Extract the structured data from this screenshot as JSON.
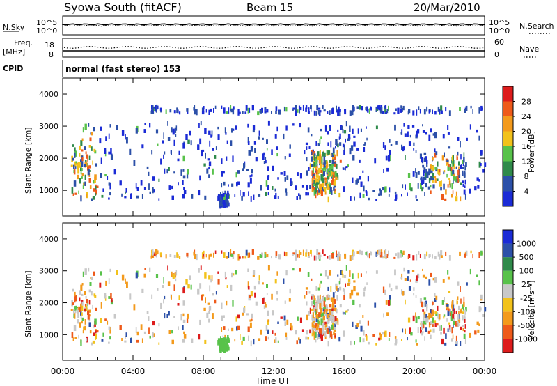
{
  "header": {
    "title": "Syowa South (fitACF)",
    "beam": "Beam 15",
    "date": "20/Mar/2010"
  },
  "top_panels": {
    "nsky_label": "N.Sky",
    "nsearch_label": "N.Search",
    "noise_ticks": [
      "10^5",
      "10^0"
    ],
    "freq_label": "Freq.",
    "freq_unit": "[MHz]",
    "freq_ticks": [
      "18",
      "8"
    ],
    "nave_label": "Nave",
    "nave_ticks": [
      "60",
      "0"
    ],
    "cpid_label": "CPID",
    "cpid_text": "normal (fast stereo) 153"
  },
  "colors": {
    "power_scale": [
      "#1b2bd6",
      "#2c50a8",
      "#2f8a4a",
      "#58c24a",
      "#f2c21b",
      "#f39a1c",
      "#ee5a1a",
      "#dd1c1c"
    ],
    "velocity_scale": [
      "#dd1c1c",
      "#ee5a1a",
      "#f39a1c",
      "#f2c21b",
      "#c8c8c8",
      "#58c24a",
      "#2f8a4a",
      "#2c50a8",
      "#1b2bd6"
    ]
  },
  "chart_data": [
    {
      "type": "heatmap",
      "name": "power",
      "ylabel": "Slant Range [km]",
      "yticks": [
        "1000",
        "2000",
        "3000",
        "4000"
      ],
      "ylim": [
        200,
        4500
      ],
      "colorbar_label": "Power [dB]",
      "colorbar_ticks": [
        "4",
        "8",
        "12",
        "16",
        "20",
        "24",
        "28"
      ],
      "xlim": [
        0,
        24
      ]
    },
    {
      "type": "heatmap",
      "name": "velocity",
      "ylabel": "Slant Range [km]",
      "yticks": [
        "1000",
        "2000",
        "3000",
        "4000"
      ],
      "ylim": [
        200,
        4500
      ],
      "colorbar_label": "Velocity [m s⁻¹]",
      "colorbar_ticks": [
        "-1000",
        "-500",
        "-100",
        "-25",
        "25",
        "100",
        "500",
        "1000"
      ],
      "xlabel": "Time UT",
      "xticks": [
        "00:00",
        "04:00",
        "08:00",
        "12:00",
        "16:00",
        "20:00",
        "00:00"
      ],
      "xlim": [
        0,
        24
      ]
    }
  ]
}
